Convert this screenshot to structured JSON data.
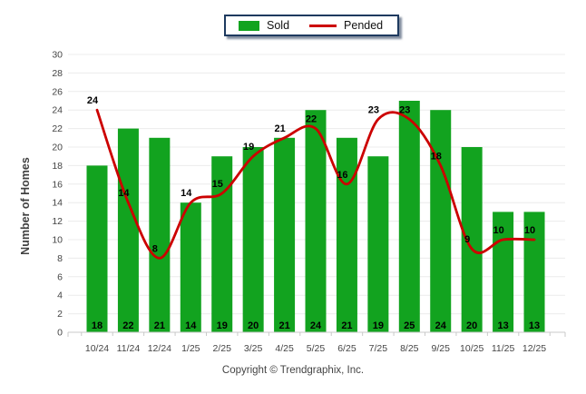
{
  "footer": {
    "copyright": "Copyright © Trendgraphix, Inc."
  },
  "colors": {
    "sold_green": "#12a31f",
    "pended_red": "#cc0000",
    "legend_border": "#1e3a5f"
  },
  "chart_data": {
    "type": "bar",
    "title": "",
    "xlabel": "",
    "ylabel": "Number of Homes",
    "categories": [
      "10/24",
      "11/24",
      "12/24",
      "1/25",
      "2/25",
      "3/25",
      "4/25",
      "5/25",
      "6/25",
      "7/25",
      "8/25",
      "9/25",
      "10/25",
      "11/25",
      "12/25"
    ],
    "series": [
      {
        "name": "Sold",
        "type": "bar",
        "color": "#12a31f",
        "values": [
          18,
          22,
          21,
          14,
          19,
          20,
          21,
          24,
          21,
          19,
          25,
          24,
          20,
          13,
          13
        ]
      },
      {
        "name": "Pended",
        "type": "line",
        "color": "#cc0000",
        "values": [
          24,
          14,
          8,
          14,
          15,
          19,
          21,
          22,
          16,
          23,
          23,
          18,
          9,
          10,
          10
        ]
      }
    ],
    "ylim": [
      0,
      30
    ],
    "ytick_step": 2,
    "grid": true,
    "value_labels": true,
    "legend_position": "top-center",
    "line_style": "smooth"
  }
}
